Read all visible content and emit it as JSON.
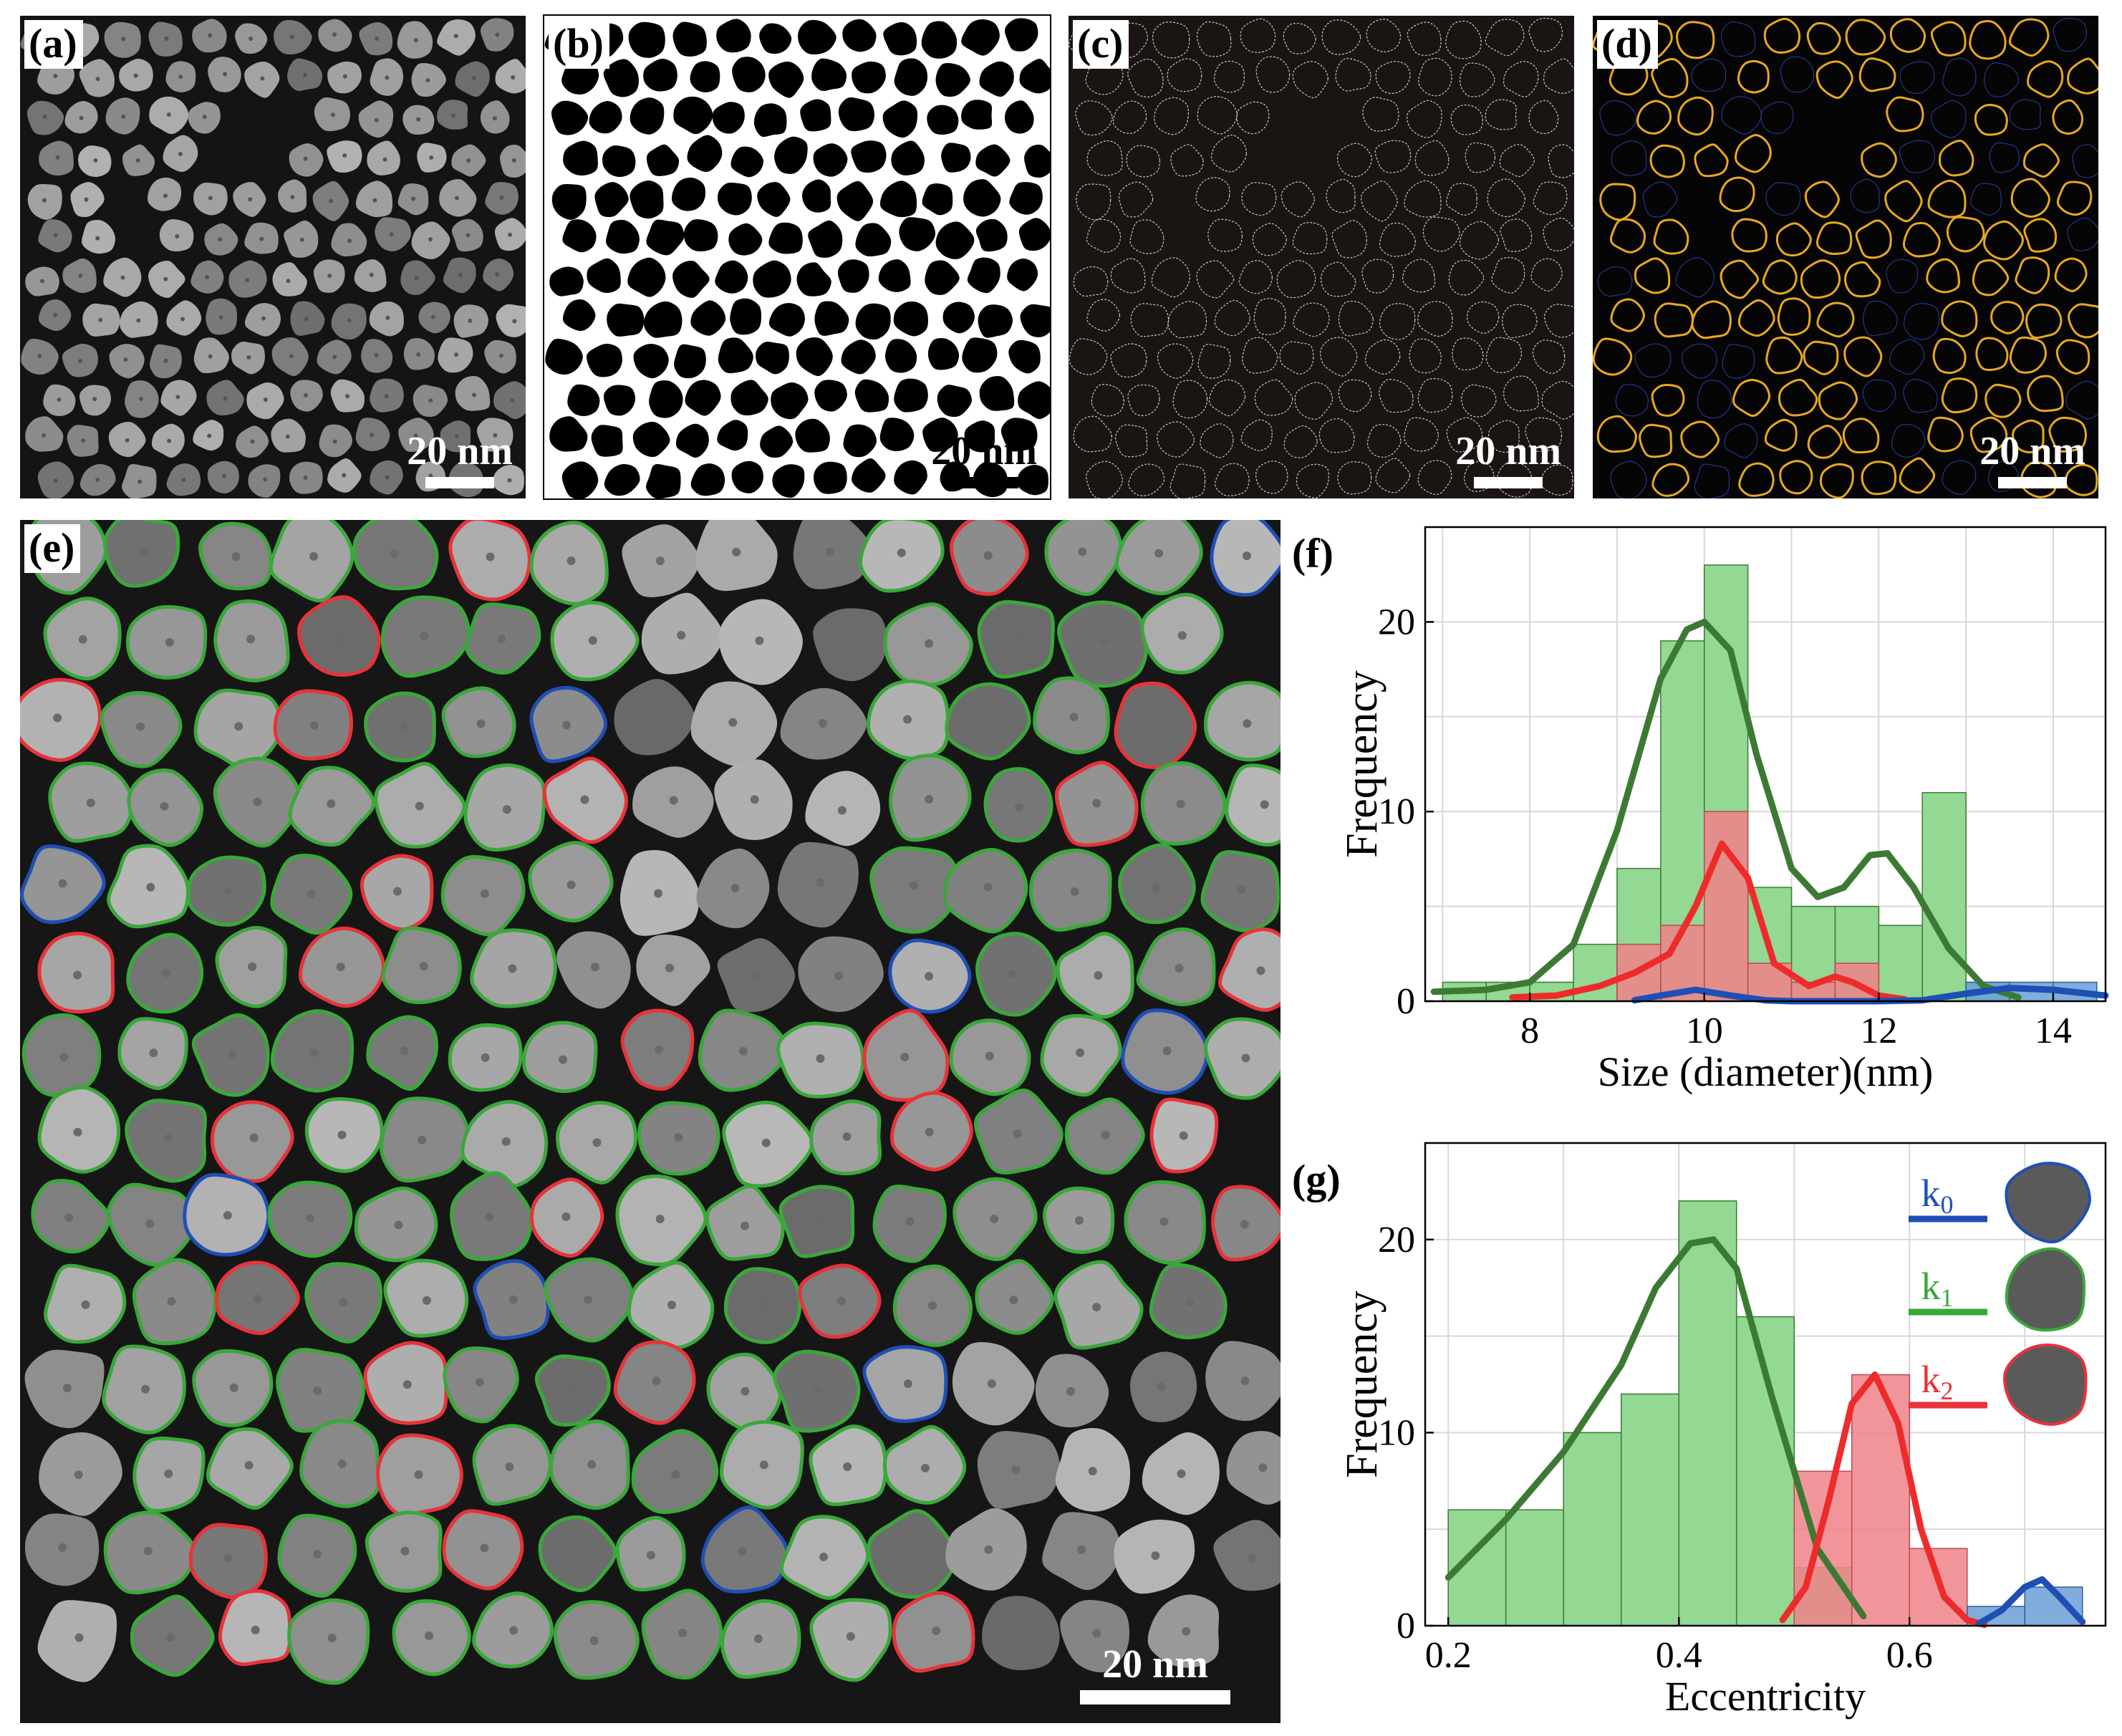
{
  "panels": {
    "a": {
      "label": "(a)",
      "scale": "20 nm"
    },
    "b": {
      "label": "(b)",
      "scale": "20 nm"
    },
    "c": {
      "label": "(c)",
      "scale": "20 nm"
    },
    "d": {
      "label": "(d)",
      "scale": "20 nm"
    },
    "e": {
      "label": "(e)",
      "scale": "20 nm"
    }
  },
  "colors": {
    "k0": "#1f4fb5",
    "k1": "#3aa83a",
    "k2": "#e8333a",
    "k1_curve": "#3c7a33",
    "outline_d": "#e8a820"
  },
  "chart_data": [
    {
      "panel": "(f)",
      "type": "bar",
      "xlabel": "Size (diameter)(nm)",
      "ylabel": "Frequency",
      "xlim": [
        6.8,
        14.6
      ],
      "ylim": [
        0,
        25
      ],
      "xticks": [
        8,
        10,
        12,
        14
      ],
      "yticks": [
        0,
        10,
        20
      ],
      "grid": true,
      "bin_edges": [
        7.0,
        7.5,
        8.0,
        8.5,
        9.0,
        9.5,
        10.0,
        10.5,
        11.0,
        11.5,
        12.0,
        12.5,
        13.0,
        13.5,
        14.0,
        14.5
      ],
      "series": [
        {
          "name": "k1",
          "values": [
            1,
            1,
            1,
            3,
            7,
            19,
            23,
            6,
            5,
            5,
            4,
            11,
            1,
            0,
            0
          ]
        },
        {
          "name": "k2",
          "values": [
            0,
            0,
            0,
            0,
            3,
            4,
            10,
            2,
            1,
            2,
            0,
            0,
            0,
            0,
            0
          ]
        },
        {
          "name": "k0",
          "values": [
            0,
            0,
            0,
            0,
            0,
            0,
            0,
            0,
            0,
            0,
            0,
            0,
            1,
            1,
            1
          ]
        }
      ],
      "curves": [
        {
          "name": "k1",
          "x": [
            6.9,
            7.5,
            8.0,
            8.5,
            9.0,
            9.5,
            9.8,
            10.0,
            10.3,
            10.6,
            11.0,
            11.3,
            11.6,
            11.9,
            12.1,
            12.4,
            12.8,
            13.2,
            13.6
          ],
          "y": [
            0.5,
            0.6,
            1.0,
            3.0,
            9.0,
            17.0,
            19.6,
            20.0,
            18.5,
            13.0,
            7.0,
            5.5,
            6.0,
            7.7,
            7.8,
            6.0,
            2.8,
            0.8,
            0.2
          ]
        },
        {
          "name": "k2",
          "x": [
            7.8,
            8.3,
            8.8,
            9.2,
            9.6,
            9.9,
            10.2,
            10.5,
            10.8,
            11.2,
            11.5,
            11.7,
            12.0,
            12.3
          ],
          "y": [
            0.2,
            0.3,
            0.8,
            1.5,
            2.5,
            5.0,
            8.3,
            6.5,
            2.0,
            0.8,
            1.3,
            1.0,
            0.3,
            0.1
          ]
        },
        {
          "name": "k0",
          "x": [
            9.2,
            9.5,
            9.9,
            10.3,
            10.7,
            11.0,
            11.5,
            12.0,
            12.5,
            13.0,
            13.5,
            14.0,
            14.6
          ],
          "y": [
            0.05,
            0.3,
            0.6,
            0.3,
            0.05,
            0.0,
            0.0,
            0.0,
            0.05,
            0.4,
            0.7,
            0.6,
            0.3
          ]
        }
      ]
    },
    {
      "panel": "(g)",
      "type": "bar",
      "xlabel": "Eccentricity",
      "ylabel": "Frequency",
      "xlim": [
        0.18,
        0.77
      ],
      "ylim": [
        0,
        25
      ],
      "xticks": [
        0.2,
        0.4,
        0.6
      ],
      "yticks": [
        0,
        10,
        20
      ],
      "grid": true,
      "legend": {
        "position": "right",
        "entries": [
          "k0",
          "k1",
          "k2"
        ]
      },
      "bin_edges": [
        0.2,
        0.25,
        0.3,
        0.35,
        0.4,
        0.45,
        0.5,
        0.55,
        0.6,
        0.65,
        0.7,
        0.75
      ],
      "series": [
        {
          "name": "k1",
          "values": [
            6,
            6,
            10,
            12,
            22,
            16,
            3,
            0,
            0,
            0,
            0
          ]
        },
        {
          "name": "k2",
          "values": [
            0,
            0,
            0,
            0,
            0,
            0,
            8,
            13,
            4,
            0,
            0
          ]
        },
        {
          "name": "k0",
          "values": [
            0,
            0,
            0,
            0,
            0,
            0,
            0,
            0,
            0,
            1,
            2
          ]
        }
      ],
      "curves": [
        {
          "name": "k1",
          "x": [
            0.2,
            0.25,
            0.3,
            0.35,
            0.38,
            0.41,
            0.43,
            0.45,
            0.48,
            0.52,
            0.56
          ],
          "y": [
            2.5,
            5.5,
            9.0,
            13.5,
            17.5,
            19.8,
            20.0,
            18.5,
            12.0,
            4.0,
            0.5
          ]
        },
        {
          "name": "k2",
          "x": [
            0.49,
            0.51,
            0.53,
            0.55,
            0.57,
            0.59,
            0.61,
            0.63,
            0.65,
            0.665
          ],
          "y": [
            0.3,
            2.0,
            6.5,
            11.5,
            13.0,
            10.5,
            5.0,
            1.5,
            0.3,
            0.05
          ]
        },
        {
          "name": "k0",
          "x": [
            0.66,
            0.68,
            0.7,
            0.715,
            0.73,
            0.75
          ],
          "y": [
            0.1,
            0.8,
            2.0,
            2.4,
            1.5,
            0.2
          ]
        }
      ]
    }
  ]
}
